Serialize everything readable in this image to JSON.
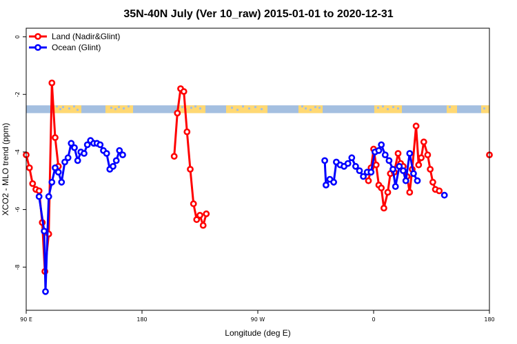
{
  "chart_data": {
    "type": "line",
    "title": "35N-40N July (Ver 10_raw)   2015-01-01 to 2020-12-31",
    "xlabel": "Longitude (deg E)",
    "ylabel": "XCO2 - MLO trend (ppm)",
    "xlim": [
      90,
      450
    ],
    "ylim": [
      -9.5,
      0.3
    ],
    "x_ticks": [
      {
        "value": 90,
        "label": "90 E"
      },
      {
        "value": 180,
        "label": "180"
      },
      {
        "value": 270,
        "label": "90 W"
      },
      {
        "value": 360,
        "label": "0"
      },
      {
        "value": 450,
        "label": "180"
      }
    ],
    "y_ticks": [
      {
        "value": 0,
        "label": "0"
      },
      {
        "value": -2,
        "label": "-2"
      },
      {
        "value": -4,
        "label": "-4"
      },
      {
        "value": -6,
        "label": "-6"
      },
      {
        "value": -8,
        "label": "-8"
      }
    ],
    "legend_position": "top-left",
    "grid": false,
    "series": [
      {
        "name": "Land (Nadir&Glint)",
        "color": "#ff0000",
        "segments": [
          [
            [
              90,
              -4.1
            ],
            [
              92.5,
              -4.55
            ],
            [
              95,
              -5.1
            ],
            [
              97.5,
              -5.3
            ],
            [
              100,
              -5.35
            ],
            [
              102.5,
              -6.45
            ],
            [
              104.5,
              -8.15
            ],
            [
              107.5,
              -6.85
            ],
            [
              110,
              -1.6
            ],
            [
              112.5,
              -3.5
            ],
            [
              115,
              -4.5
            ]
          ],
          [
            [
              205,
              -4.15
            ],
            [
              207.5,
              -2.65
            ],
            [
              210,
              -1.8
            ],
            [
              212.5,
              -1.9
            ],
            [
              215,
              -3.3
            ],
            [
              217.5,
              -4.6
            ],
            [
              220,
              -5.8
            ],
            [
              222.5,
              -6.35
            ],
            [
              225,
              -6.2
            ],
            [
              227.5,
              -6.55
            ],
            [
              230,
              -6.15
            ]
          ]
        ]
      },
      {
        "name": "Ocean (Glint)",
        "color": "#0000ff",
        "segments": [
          [
            [
              100,
              -5.55
            ],
            [
              104,
              -6.75
            ],
            [
              105,
              -8.85
            ],
            [
              107.5,
              -5.55
            ],
            [
              110,
              -5.05
            ],
            [
              112.5,
              -4.55
            ],
            [
              115,
              -4.7
            ],
            [
              117.5,
              -5.05
            ],
            [
              120,
              -4.35
            ],
            [
              122.5,
              -4.2
            ],
            [
              125,
              -3.7
            ],
            [
              127.5,
              -3.85
            ],
            [
              130,
              -4.3
            ],
            [
              132.5,
              -4.0
            ],
            [
              135,
              -4.05
            ],
            [
              137.5,
              -3.75
            ],
            [
              140,
              -3.6
            ],
            [
              142.5,
              -3.7
            ],
            [
              145,
              -3.7
            ],
            [
              147.5,
              -3.75
            ],
            [
              150,
              -3.95
            ],
            [
              152.5,
              -4.05
            ],
            [
              155,
              -4.6
            ],
            [
              157.5,
              -4.5
            ],
            [
              160,
              -4.3
            ],
            [
              162.5,
              -3.95
            ],
            [
              165,
              -4.1
            ]
          ]
        ]
      }
    ],
    "coverage_band": {
      "y_range": [
        -2.65,
        -2.38
      ],
      "base_color": "#a4bfe0",
      "highlight_color": "#ffd873"
    }
  }
}
